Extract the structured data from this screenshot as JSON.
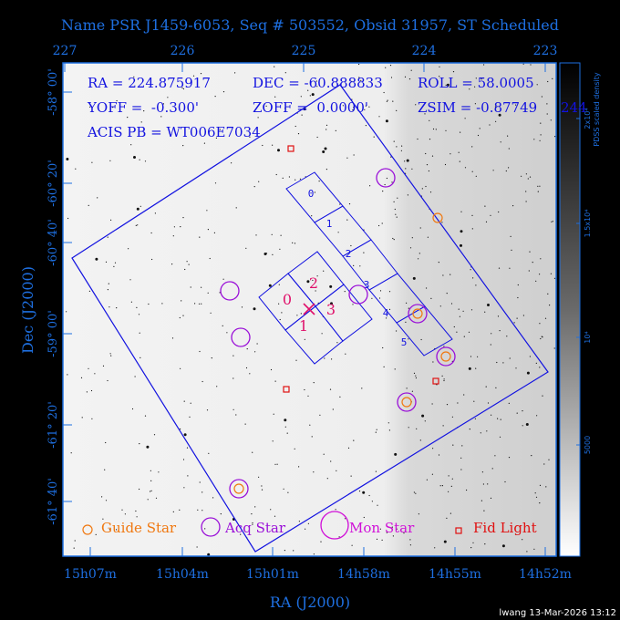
{
  "title": "Name PSR J1459-6053, Seq # 503552, Obsid 31957, ST Scheduled",
  "info": {
    "ra": "RA = 224.875917",
    "dec": "DEC = -60.888833",
    "roll": "ROLL = 58.0005",
    "yoff": "YOFF =  -0.300'",
    "zoff": "ZOFF =  0.0000'",
    "zsim": "ZSIM = -0.87749",
    "acis": "ACIS PB = WT006E7034",
    "colorbar_overflow": "244"
  },
  "top_axis_ticks": [
    "227",
    "226",
    "225",
    "224",
    "223"
  ],
  "bottom_axis_ticks": [
    "15h07m",
    "15h04m",
    "15h01m",
    "14h58m",
    "14h55m",
    "14h52m"
  ],
  "left_axis_ticks": [
    "-58° 00'",
    "-60° 20'",
    "-60° 40'",
    "-59° 00'",
    "-61° 20'",
    "-61° 40'"
  ],
  "xlabel": "RA (J2000)",
  "ylabel": "Dec (J2000)",
  "colorbar": {
    "label": "PDSS scaled density",
    "ticks": [
      "2x10⁴",
      "1.5x10⁴",
      "10⁴",
      "5000"
    ]
  },
  "legend": {
    "guide": "Guide Star",
    "acq": "Acq Star",
    "mon": "Mon Star",
    "fid": "Fid Light"
  },
  "ccd_labels": {
    "i0": "0",
    "i1": "1",
    "i2": "2",
    "i3": "3",
    "s0": "0",
    "s1": "1",
    "s2": "2",
    "s3": "3",
    "s4": "4",
    "s5": "5"
  },
  "footer": "lwang 13-Mar-2026 13:12",
  "colors": {
    "frame": "#1e6fe0",
    "fov": "#1212e0",
    "acis_i_label": "#e0106a",
    "acq": "#9a10d8",
    "guide": "#f07810",
    "fid": "#e01010",
    "mon": "#d010d8"
  }
}
